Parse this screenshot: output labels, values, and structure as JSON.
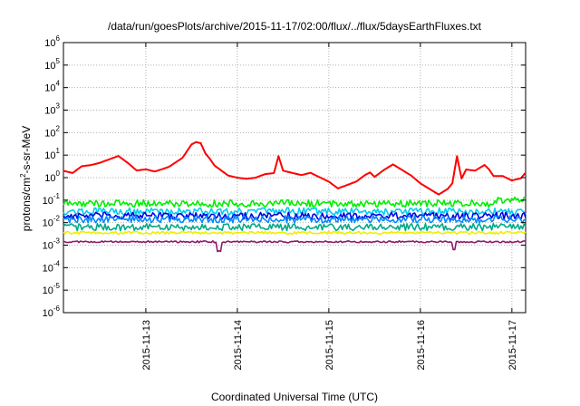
{
  "chart_data": {
    "type": "line",
    "title": "/data/run/goesPlots/archive/2015-11-17/02:00/flux/../flux/5daysEarthFluxes.txt",
    "xlabel": "Coordinated Universal Time (UTC)",
    "ylabel": "protons/cm2-s-sr-MeV",
    "ylabel_parts": {
      "base": "protons/cm",
      "sup": "2",
      "rest": "-s-sr-MeV"
    },
    "yscale": "log",
    "ylim_exponent": [
      -6,
      6
    ],
    "yticks": [
      {
        "base": "10",
        "exp": "-6",
        "value": -6
      },
      {
        "base": "10",
        "exp": "-5",
        "value": -5
      },
      {
        "base": "10",
        "exp": "-4",
        "value": -4
      },
      {
        "base": "10",
        "exp": "-3",
        "value": -3
      },
      {
        "base": "10",
        "exp": "-2",
        "value": -2
      },
      {
        "base": "10",
        "exp": "-1",
        "value": -1
      },
      {
        "base": "10",
        "exp": "0",
        "value": 0
      },
      {
        "base": "10",
        "exp": "1",
        "value": 1
      },
      {
        "base": "10",
        "exp": "2",
        "value": 2
      },
      {
        "base": "10",
        "exp": "3",
        "value": 3
      },
      {
        "base": "10",
        "exp": "4",
        "value": 4
      },
      {
        "base": "10",
        "exp": "5",
        "value": 5
      },
      {
        "base": "10",
        "exp": "6",
        "value": 6
      }
    ],
    "xlim_days": [
      12.1,
      17.15
    ],
    "xticks": [
      {
        "label": "2015-11-13",
        "day": 13
      },
      {
        "label": "2015-11-14",
        "day": 14
      },
      {
        "label": "2015-11-15",
        "day": 15
      },
      {
        "label": "2015-11-16",
        "day": 16
      },
      {
        "label": "2015-11-17",
        "day": 17
      }
    ],
    "grid": true,
    "series": [
      {
        "color": "#ff0000",
        "approx_log10_level": 0.2,
        "points": [
          [
            12.1,
            0.35
          ],
          [
            12.2,
            0.25
          ],
          [
            12.3,
            0.55
          ],
          [
            12.4,
            0.6
          ],
          [
            12.5,
            0.7
          ],
          [
            12.7,
            1.0
          ],
          [
            12.8,
            0.7
          ],
          [
            12.9,
            0.35
          ],
          [
            13.0,
            0.4
          ],
          [
            13.1,
            0.3
          ],
          [
            13.25,
            0.5
          ],
          [
            13.4,
            0.9
          ],
          [
            13.5,
            1.5
          ],
          [
            13.55,
            1.6
          ],
          [
            13.6,
            1.55
          ],
          [
            13.65,
            1.1
          ],
          [
            13.7,
            0.85
          ],
          [
            13.75,
            0.55
          ],
          [
            13.8,
            0.4
          ],
          [
            13.9,
            0.1
          ],
          [
            14.0,
            0.0
          ],
          [
            14.1,
            -0.05
          ],
          [
            14.2,
            0.0
          ],
          [
            14.3,
            0.15
          ],
          [
            14.4,
            0.2
          ],
          [
            14.45,
            0.95
          ],
          [
            14.5,
            0.3
          ],
          [
            14.6,
            0.2
          ],
          [
            14.7,
            0.1
          ],
          [
            14.8,
            0.2
          ],
          [
            14.9,
            0.0
          ],
          [
            15.0,
            -0.2
          ],
          [
            15.1,
            -0.5
          ],
          [
            15.2,
            -0.35
          ],
          [
            15.3,
            -0.2
          ],
          [
            15.4,
            0.1
          ],
          [
            15.45,
            0.2
          ],
          [
            15.5,
            0.0
          ],
          [
            15.55,
            0.15
          ],
          [
            15.6,
            0.3
          ],
          [
            15.7,
            0.55
          ],
          [
            15.8,
            0.3
          ],
          [
            15.9,
            0.05
          ],
          [
            16.0,
            -0.3
          ],
          [
            16.1,
            -0.55
          ],
          [
            16.2,
            -0.8
          ],
          [
            16.3,
            -0.55
          ],
          [
            16.35,
            -0.3
          ],
          [
            16.4,
            0.9
          ],
          [
            16.45,
            -0.1
          ],
          [
            16.5,
            0.3
          ],
          [
            16.6,
            0.25
          ],
          [
            16.7,
            0.5
          ],
          [
            16.75,
            0.3
          ],
          [
            16.8,
            0.0
          ],
          [
            16.9,
            0.0
          ],
          [
            17.0,
            -0.2
          ],
          [
            17.1,
            -0.1
          ],
          [
            17.15,
            0.15
          ]
        ]
      },
      {
        "color": "#00ee00",
        "approx_log10_level": -1.15
      },
      {
        "color": "#00ccee",
        "approx_log10_level": -1.5
      },
      {
        "color": "#0000dd",
        "approx_log10_level": -1.7
      },
      {
        "color": "#0088ff",
        "approx_log10_level": -1.85
      },
      {
        "color": "#00aa88",
        "approx_log10_level": -2.2
      },
      {
        "color": "#eeee00",
        "approx_log10_level": -2.45
      },
      {
        "color": "#8b1a6b",
        "approx_log10_level": -2.85
      }
    ]
  }
}
